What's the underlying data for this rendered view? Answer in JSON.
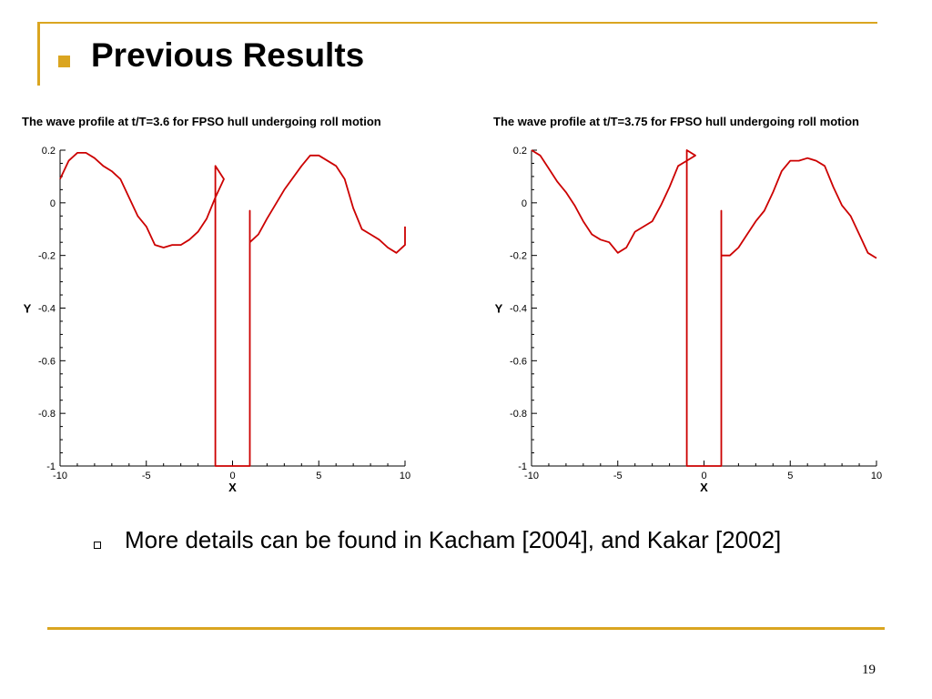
{
  "slide": {
    "title": "Previous Results",
    "note": "More details can be found in Kacham [2004], and Kakar [2002]",
    "page_number": "19"
  },
  "colors": {
    "accent": "#DAA520",
    "series": "#CC0000"
  },
  "icons": {
    "title_bullet": "filled-square-bullet-icon",
    "note_bullet": "hollow-square-bullet-icon"
  },
  "chart_data": [
    {
      "type": "line",
      "title": "The wave profile at t/T=3.6 for FPSO hull undergoing roll motion",
      "xlabel": "X",
      "ylabel": "Y",
      "xlim": [
        -10,
        10
      ],
      "ylim": [
        -1,
        0.2
      ],
      "xticks": [
        -10,
        -5,
        0,
        5,
        10
      ],
      "xtick_labels": [
        "-10",
        "-5",
        "0",
        "5",
        "10"
      ],
      "yticks": [
        0.2,
        0,
        -0.2,
        -0.4,
        -0.6,
        -0.8,
        -1
      ],
      "ytick_labels": [
        "0.2",
        "0",
        "-0.2",
        "-0.4",
        "-0.6",
        "-0.8",
        "-1"
      ],
      "grid": false,
      "series": [
        {
          "points": [
            [
              -10,
              0.09
            ],
            [
              -9.5,
              0.16
            ],
            [
              -9,
              0.19
            ],
            [
              -8.5,
              0.19
            ],
            [
              -8,
              0.17
            ],
            [
              -7.5,
              0.14
            ],
            [
              -7,
              0.12
            ],
            [
              -6.5,
              0.09
            ],
            [
              -6,
              0.02
            ],
            [
              -5.5,
              -0.05
            ],
            [
              -5,
              -0.09
            ],
            [
              -4.5,
              -0.16
            ],
            [
              -4,
              -0.17
            ],
            [
              -3.5,
              -0.16
            ],
            [
              -3,
              -0.16
            ],
            [
              -2.5,
              -0.14
            ],
            [
              -2,
              -0.11
            ],
            [
              -1.5,
              -0.06
            ],
            [
              -1,
              0.02
            ],
            [
              -0.5,
              0.09
            ],
            [
              -1,
              0.14
            ],
            [
              -1,
              0.13
            ],
            [
              -1,
              -1
            ],
            [
              1,
              -1
            ],
            [
              1,
              -0.03
            ],
            [
              1,
              -0.15
            ],
            [
              1.5,
              -0.12
            ],
            [
              2,
              -0.06
            ],
            [
              3,
              0.05
            ],
            [
              4,
              0.14
            ],
            [
              4.5,
              0.18
            ],
            [
              5,
              0.18
            ],
            [
              6,
              0.14
            ],
            [
              6.5,
              0.09
            ],
            [
              7,
              -0.02
            ],
            [
              7.5,
              -0.1
            ],
            [
              8,
              -0.12
            ],
            [
              8.5,
              -0.14
            ],
            [
              9,
              -0.17
            ],
            [
              9.5,
              -0.19
            ],
            [
              10,
              -0.16
            ],
            [
              10,
              -0.09
            ]
          ]
        }
      ]
    },
    {
      "type": "line",
      "title": "The wave profile at t/T=3.75 for FPSO hull undergoing roll motion",
      "xlabel": "X",
      "ylabel": "Y",
      "xlim": [
        -10,
        10
      ],
      "ylim": [
        -1,
        0.2
      ],
      "xticks": [
        -10,
        -5,
        0,
        5,
        10
      ],
      "xtick_labels": [
        "-10",
        "-5",
        "0",
        "5",
        "10"
      ],
      "yticks": [
        0.2,
        0,
        -0.2,
        -0.4,
        -0.6,
        -0.8,
        -1
      ],
      "ytick_labels": [
        "0.2",
        "0",
        "-0.2",
        "-0.4",
        "-0.6",
        "-0.8",
        "-1"
      ],
      "grid": false,
      "series": [
        {
          "points": [
            [
              -10,
              0.2
            ],
            [
              -9.5,
              0.18
            ],
            [
              -9,
              0.13
            ],
            [
              -8.5,
              0.08
            ],
            [
              -8,
              0.04
            ],
            [
              -7.5,
              -0.01
            ],
            [
              -7,
              -0.07
            ],
            [
              -6.5,
              -0.12
            ],
            [
              -6,
              -0.14
            ],
            [
              -5.5,
              -0.15
            ],
            [
              -5,
              -0.19
            ],
            [
              -4.5,
              -0.17
            ],
            [
              -4,
              -0.11
            ],
            [
              -3.5,
              -0.09
            ],
            [
              -3,
              -0.07
            ],
            [
              -2.5,
              -0.01
            ],
            [
              -2,
              0.06
            ],
            [
              -1.5,
              0.14
            ],
            [
              -1,
              0.16
            ],
            [
              -0.5,
              0.18
            ],
            [
              -1,
              0.2
            ],
            [
              -1,
              -1
            ],
            [
              1,
              -1
            ],
            [
              1,
              -0.03
            ],
            [
              1,
              -0.2
            ],
            [
              1.5,
              -0.2
            ],
            [
              2,
              -0.17
            ],
            [
              2.5,
              -0.12
            ],
            [
              3,
              -0.07
            ],
            [
              3.5,
              -0.03
            ],
            [
              4,
              0.04
            ],
            [
              4.5,
              0.12
            ],
            [
              5,
              0.16
            ],
            [
              5.5,
              0.16
            ],
            [
              6,
              0.17
            ],
            [
              6.5,
              0.16
            ],
            [
              7,
              0.14
            ],
            [
              7.5,
              0.06
            ],
            [
              8,
              -0.01
            ],
            [
              8.5,
              -0.05
            ],
            [
              9,
              -0.12
            ],
            [
              9.5,
              -0.19
            ],
            [
              10,
              -0.21
            ]
          ]
        }
      ]
    }
  ]
}
